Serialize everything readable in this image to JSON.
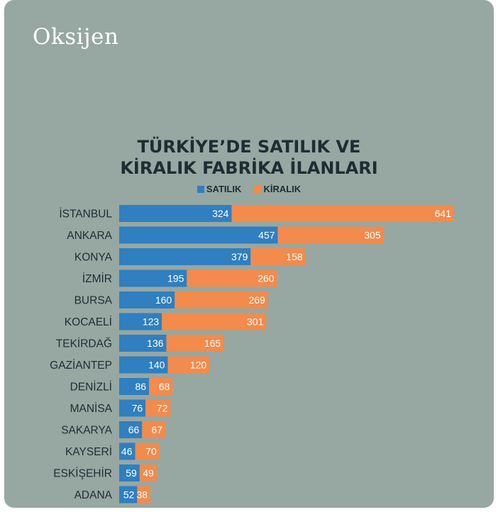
{
  "brand": "Oksijen",
  "colors": {
    "background": "#97a7a2",
    "satilik": "#2f7fc1",
    "kiralik": "#f28b4c",
    "text": "#1f2d33"
  },
  "chart_data": {
    "type": "bar",
    "orientation": "horizontal",
    "stacked": true,
    "title_line1": "TÜRKİYE’DE SATILIK VE",
    "title_line2": "KİRALIK FABRİKA İLANLARI",
    "categories": [
      "İSTANBUL",
      "ANKARA",
      "KONYA",
      "İZMİR",
      "BURSA",
      "KOCAELİ",
      "TEKİRDAĞ",
      "GAZİANTEP",
      "DENİZLİ",
      "MANİSA",
      "SAKARYA",
      "KAYSERİ",
      "ESKİŞEHİR",
      "ADANA"
    ],
    "series": [
      {
        "name": "SATILIK",
        "values": [
          324,
          457,
          379,
          195,
          160,
          123,
          136,
          140,
          86,
          76,
          66,
          46,
          59,
          52
        ]
      },
      {
        "name": "KİRALIK",
        "values": [
          641,
          305,
          158,
          260,
          269,
          301,
          165,
          120,
          68,
          72,
          67,
          70,
          49,
          38
        ]
      }
    ],
    "xlim": [
      0,
      965
    ],
    "legend_position": "top-center",
    "grid": false
  }
}
